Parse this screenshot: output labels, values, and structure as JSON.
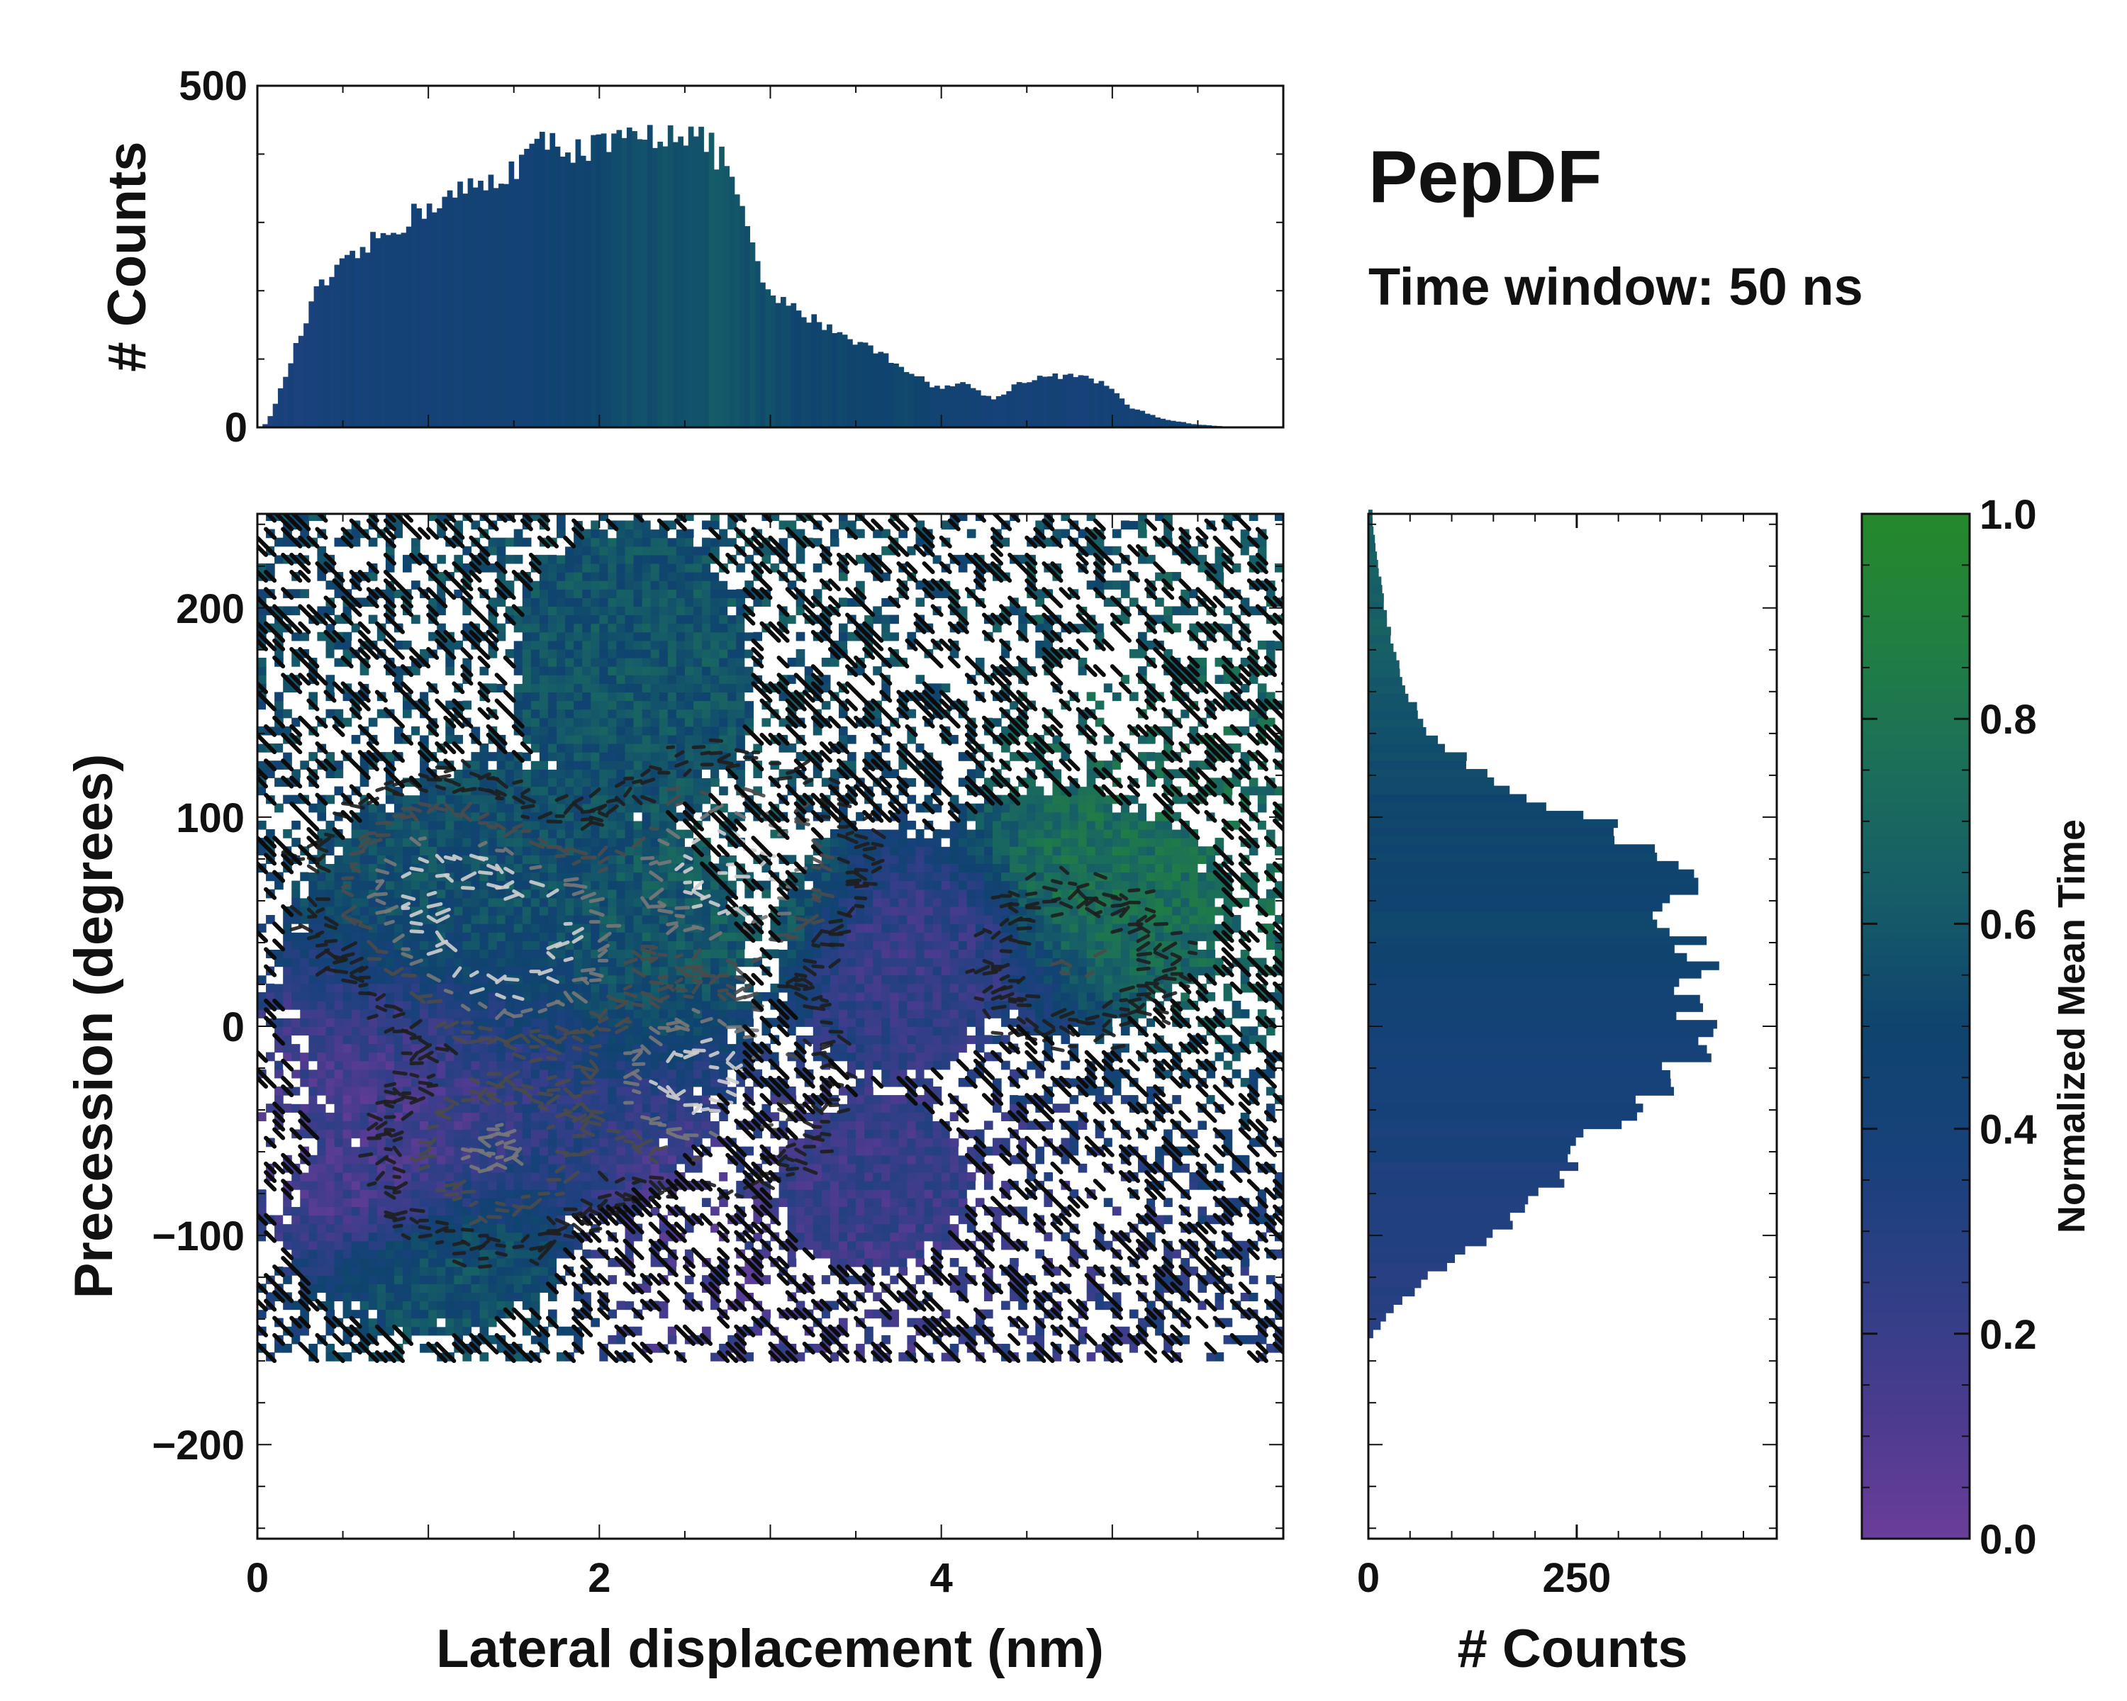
{
  "title": "PepDF",
  "subtitle": "Time window: 50 ns",
  "chart_data": [
    {
      "id": "top_histogram",
      "type": "bar",
      "xlabel": "",
      "ylabel": "# Counts",
      "xlim": [
        0,
        6.0
      ],
      "ylim": [
        0,
        500
      ],
      "yticks": [
        0,
        500
      ],
      "ytick_labels": [
        "0",
        "500"
      ],
      "bin_width": 0.03,
      "profile_x": [
        0.0,
        0.05,
        0.1,
        0.2,
        0.35,
        0.5,
        0.7,
        0.85,
        1.0,
        1.2,
        1.4,
        1.6,
        1.75,
        1.9,
        2.1,
        2.3,
        2.45,
        2.6,
        2.75,
        2.85,
        2.95,
        3.05,
        3.2,
        3.4,
        3.6,
        3.8,
        3.95,
        4.05,
        4.15,
        4.3,
        4.45,
        4.6,
        4.8,
        4.95,
        5.1,
        5.3,
        5.5,
        5.75,
        5.9
      ],
      "profile_y": [
        0,
        5,
        30,
        100,
        200,
        235,
        275,
        300,
        325,
        345,
        360,
        405,
        420,
        405,
        415,
        425,
        440,
        420,
        385,
        300,
        210,
        185,
        165,
        140,
        115,
        85,
        60,
        60,
        65,
        40,
        65,
        75,
        75,
        65,
        30,
        12,
        4,
        0,
        0
      ],
      "mean_time_profile": [
        0.35,
        0.4,
        0.42,
        0.45,
        0.55,
        0.6,
        0.5,
        0.5,
        0.4,
        0.4,
        0.45,
        0.6
      ]
    },
    {
      "id": "main_heatmap",
      "type": "heatmap",
      "xlabel": "Lateral displacement (nm)",
      "ylabel": "Precession (degrees)",
      "xlim": [
        0,
        6.0
      ],
      "ylim": [
        -245,
        245
      ],
      "xticks": [
        0,
        2,
        4
      ],
      "xtick_labels": [
        "0",
        "2",
        "4"
      ],
      "yticks": [
        -200,
        -100,
        0,
        100,
        200
      ],
      "ytick_labels": [
        "−200",
        "−100",
        "0",
        "100",
        "200"
      ],
      "colorscale": "normalized mean time (purple to green)",
      "density_peaks": [
        {
          "x": 1.5,
          "y": 40,
          "weight": 1.0
        },
        {
          "x": 2.75,
          "y": 75,
          "weight": 0.85
        },
        {
          "x": 2.6,
          "y": -25,
          "weight": 0.8
        },
        {
          "x": 1.0,
          "y": 70,
          "weight": 0.55
        },
        {
          "x": 1.4,
          "y": -60,
          "weight": 0.5
        },
        {
          "x": 4.8,
          "y": 30,
          "weight": 0.25
        }
      ],
      "extent_blobs": [
        {
          "x": 1.5,
          "y": 15,
          "rx": 1.45,
          "ry": 120
        },
        {
          "x": 2.2,
          "y": 170,
          "rx": 0.75,
          "ry": 75
        },
        {
          "x": 1.0,
          "y": -95,
          "rx": 0.9,
          "ry": 55
        },
        {
          "x": 3.6,
          "y": -75,
          "rx": 0.6,
          "ry": 45
        },
        {
          "x": 4.7,
          "y": 55,
          "rx": 1.0,
          "ry": 60
        },
        {
          "x": 3.7,
          "y": 35,
          "rx": 0.7,
          "ry": 65
        }
      ],
      "mean_time_regions": [
        {
          "x": 5.0,
          "y": 75,
          "value": 0.75
        },
        {
          "x": 2.6,
          "y": 175,
          "value": 0.58
        },
        {
          "x": 2.8,
          "y": 60,
          "value": 0.62
        },
        {
          "x": 1.3,
          "y": 100,
          "value": 0.55
        },
        {
          "x": 0.6,
          "y": -60,
          "value": 0.15
        },
        {
          "x": 2.6,
          "y": -110,
          "value": 0.15
        },
        {
          "x": 3.8,
          "y": 35,
          "value": 0.22
        },
        {
          "x": 3.6,
          "y": -85,
          "value": 0.2
        },
        {
          "x": 1.2,
          "y": -130,
          "value": 0.55
        }
      ]
    },
    {
      "id": "right_histogram",
      "type": "bar",
      "orientation": "horizontal",
      "xlabel": "# Counts",
      "ylabel": "",
      "xlim": [
        0,
        490
      ],
      "ylim": [
        -245,
        245
      ],
      "xticks": [
        0,
        250
      ],
      "xtick_labels": [
        "0",
        "250"
      ],
      "bin_width": 4,
      "profile_y": [
        -245,
        -150,
        -140,
        -120,
        -100,
        -80,
        -60,
        -45,
        -30,
        -15,
        0,
        10,
        20,
        30,
        40,
        50,
        60,
        70,
        80,
        90,
        100,
        110,
        120,
        140,
        160,
        180,
        200,
        220,
        240
      ],
      "profile_x": [
        0,
        0,
        20,
        70,
        150,
        210,
        250,
        295,
        360,
        385,
        395,
        380,
        385,
        410,
        385,
        345,
        360,
        380,
        340,
        310,
        270,
        170,
        140,
        75,
        45,
        30,
        20,
        12,
        5
      ],
      "mean_time_profile": [
        0.3,
        0.3,
        0.35,
        0.4,
        0.5,
        0.5,
        0.55,
        0.65,
        0.65
      ]
    },
    {
      "id": "colorbar",
      "type": "colorbar",
      "label": "Normalized Mean Time",
      "range": [
        0.0,
        1.0
      ],
      "ticks": [
        0.0,
        0.2,
        0.4,
        0.6,
        0.8,
        1.0
      ],
      "tick_labels": [
        "0.0",
        "0.2",
        "0.4",
        "0.6",
        "0.8",
        "1.0"
      ],
      "color_stops": [
        "#6a3d9a",
        "#4a3b8f",
        "#2e3f86",
        "#17417a",
        "#0f446e",
        "#165c68",
        "#1b6e5a",
        "#217f42",
        "#25892b"
      ]
    }
  ]
}
